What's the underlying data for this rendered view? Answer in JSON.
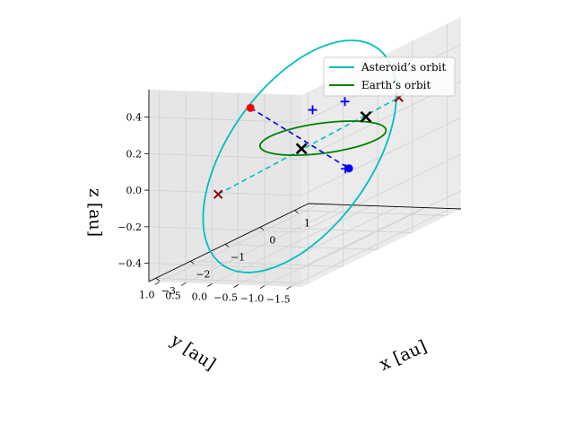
{
  "chart_data": {
    "type": "line",
    "projection": "3d",
    "grid": true,
    "legend_position": "top-right",
    "axes": {
      "x": {
        "label": "x [au]",
        "lim": [
          -3.2,
          1.4
        ],
        "ticks": [
          -3,
          -2,
          -1,
          0,
          1
        ],
        "tick_labels": [
          "−3",
          "−2",
          "−1",
          "0",
          "1"
        ]
      },
      "y": {
        "label": "y [au]",
        "lim": [
          -1.7,
          1.2
        ],
        "ticks": [
          1.0,
          0.5,
          0.0,
          -0.5,
          -1.0,
          -1.5
        ],
        "tick_labels": [
          "1.0",
          "0.5",
          "0.0",
          "−0.5",
          "−1.0",
          "−1.5"
        ]
      },
      "z": {
        "label": "z [au]",
        "lim": [
          -0.5,
          0.55
        ],
        "ticks": [
          0.4,
          0.2,
          0.0,
          -0.2,
          -0.4
        ],
        "tick_labels": [
          "0.4",
          "0.2",
          "0.0",
          "−0.2",
          "−0.4"
        ]
      }
    },
    "series": [
      {
        "name": "Asteroid’s orbit",
        "color": "#00bfbf",
        "ellipse": {
          "center": [
            -1.05,
            -0.25,
            0.0
          ],
          "u": [
            1.95,
            0.35,
            0.45
          ],
          "v": [
            -0.35,
            1.35,
            0.0
          ]
        }
      },
      {
        "name": "Earth’s orbit",
        "color": "#008000",
        "ellipse": {
          "center": [
            0.0,
            0.0,
            0.0
          ],
          "u": [
            1.0,
            0.0,
            0.0
          ],
          "v": [
            0.0,
            1.0,
            0.0
          ]
        }
      }
    ],
    "line_of_apsides": {
      "color": "#0000ff",
      "style": "dashed",
      "from": [
        -3.0,
        -0.6,
        0.45
      ],
      "to": [
        0.9,
        0.1,
        -0.25
      ]
    },
    "line_of_nodes": {
      "color": "#00bfbf",
      "style": "dashed",
      "from": [
        -1.28,
        1.15,
        -0.2
      ],
      "to": [
        0.37,
        -1.2,
        0.2
      ]
    },
    "points": [
      {
        "kind": "dot",
        "color": "#ff0000",
        "at": [
          -3.0,
          -0.6,
          0.45
        ]
      },
      {
        "kind": "dot",
        "color": "#0000ff",
        "at": [
          0.9,
          0.1,
          -0.25
        ]
      },
      {
        "kind": "plus",
        "color": "#0000ff",
        "at": [
          -0.96,
          -1.05,
          0.3
        ]
      },
      {
        "kind": "plus",
        "color": "#0000ff",
        "at": [
          -1.18,
          -0.58,
          0.27
        ]
      },
      {
        "kind": "plus",
        "color": "#0000ff",
        "at": [
          0.87,
          0.15,
          -0.25
        ]
      },
      {
        "kind": "cross",
        "color": "#8b0000",
        "at": [
          -1.28,
          1.15,
          -0.2
        ]
      },
      {
        "kind": "cross",
        "color": "#8b0000",
        "at": [
          0.37,
          -1.2,
          0.2
        ]
      },
      {
        "kind": "cross",
        "color": "#000000",
        "at": [
          -0.62,
          0.0,
          0.0
        ]
      },
      {
        "kind": "cross",
        "color": "#000000",
        "at": [
          0.25,
          -0.65,
          0.1
        ]
      }
    ]
  }
}
